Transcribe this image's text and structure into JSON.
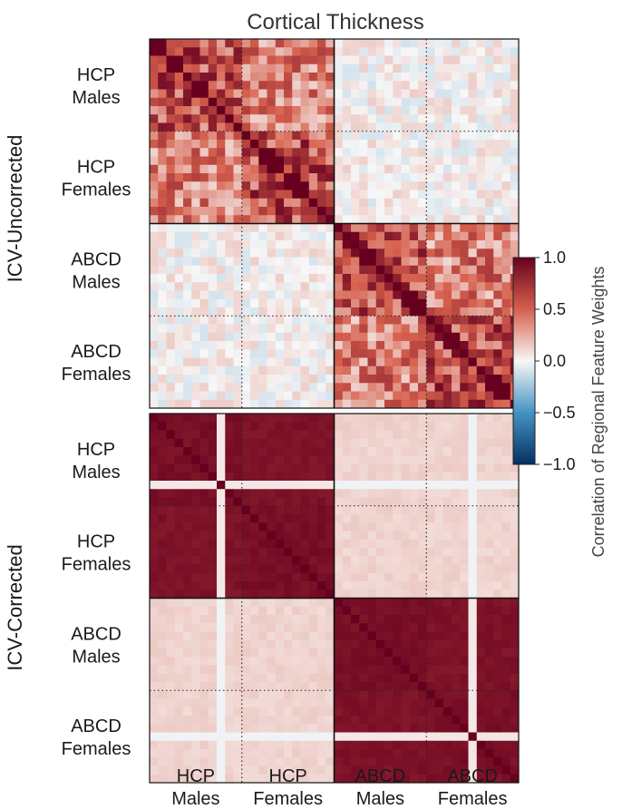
{
  "chart_data": {
    "type": "heatmap",
    "title": "Cortical Thickness",
    "categories": [
      "HCP Males",
      "HCP Females",
      "ABCD Males",
      "ABCD Females"
    ],
    "row_category_lines": [
      [
        "HCP",
        "Males"
      ],
      [
        "HCP",
        "Females"
      ],
      [
        "ABCD",
        "Males"
      ],
      [
        "ABCD",
        "Females"
      ]
    ],
    "col_category_lines": [
      [
        "HCP",
        "Males"
      ],
      [
        "HCP",
        "Females"
      ],
      [
        "ABCD",
        "Males"
      ],
      [
        "ABCD",
        "Females"
      ]
    ],
    "cells_per_group": 11,
    "panels": [
      {
        "ylabel": "ICV-Uncorrected",
        "block_mean_correlation": [
          [
            0.6,
            0.4,
            0.02,
            0.02
          ],
          [
            0.4,
            0.6,
            0.02,
            0.02
          ],
          [
            0.02,
            0.02,
            0.6,
            0.4
          ],
          [
            0.02,
            0.02,
            0.4,
            0.6
          ]
        ],
        "diagonal": 1.0
      },
      {
        "ylabel": "ICV-Corrected",
        "block_mean_correlation": [
          [
            0.92,
            0.9,
            0.12,
            0.12
          ],
          [
            0.9,
            0.92,
            0.12,
            0.12
          ],
          [
            0.12,
            0.12,
            0.92,
            0.9
          ],
          [
            0.12,
            0.12,
            0.9,
            0.92
          ]
        ],
        "diagonal": 1.0
      }
    ],
    "colorbar": {
      "label": "Correlation of Regional Feature Weights",
      "range": [
        -1.0,
        1.0
      ],
      "tick_values": [
        1.0,
        0.5,
        0.0,
        -0.5,
        -1.0
      ],
      "tick_labels": [
        "1.0",
        "0.5",
        "0.0",
        "−0.5",
        "−1.0"
      ],
      "colormap": "RdBu_r",
      "colors": {
        "max": "#67001f",
        "high": "#d6604d",
        "mid": "#f7f7f7",
        "low": "#4393c3",
        "min": "#053061"
      }
    },
    "grid": "dotted lines between same-dataset groups, solid lines between datasets"
  }
}
